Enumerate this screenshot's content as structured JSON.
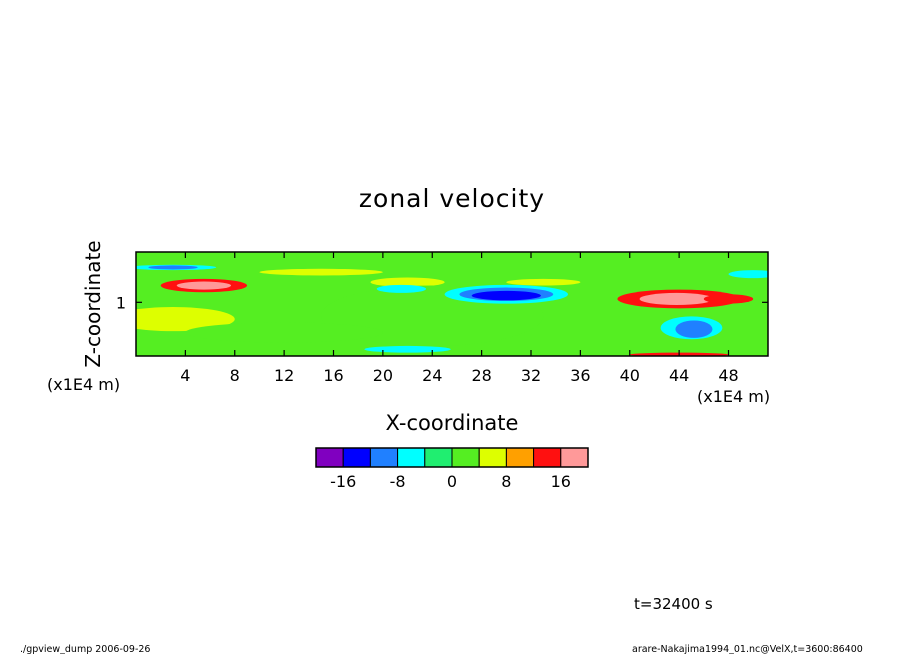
{
  "chart_data": {
    "type": "heatmap",
    "title": "zonal velocity",
    "xlabel": "X-coordinate",
    "ylabel": "Z-coordinate",
    "x_unit": "(x1E4 m)",
    "y_unit": "(x1E4 m)",
    "xlim": [
      0,
      51.2
    ],
    "ylim": [
      0.2,
      1.75
    ],
    "x_ticks": [
      "4",
      "8",
      "12",
      "16",
      "20",
      "24",
      "28",
      "32",
      "36",
      "40",
      "44",
      "48"
    ],
    "x_tick_values": [
      4,
      8,
      12,
      16,
      20,
      24,
      28,
      32,
      36,
      40,
      44,
      48
    ],
    "y_ticks": [
      "1"
    ],
    "y_tick_values": [
      1
    ],
    "background_level": 0,
    "features": [
      {
        "x": 5.5,
        "z": 1.25,
        "rx": 3.5,
        "rz": 0.1,
        "level": 12
      },
      {
        "x": 5.5,
        "z": 1.25,
        "rx": 2.2,
        "rz": 0.06,
        "level": 16
      },
      {
        "x": 3.0,
        "z": 0.75,
        "rx": 5.0,
        "rz": 0.18,
        "level": 6
      },
      {
        "x": 15.0,
        "z": 1.45,
        "rx": 5.0,
        "rz": 0.05,
        "level": 6
      },
      {
        "x": 22.0,
        "z": 1.3,
        "rx": 3.0,
        "rz": 0.07,
        "level": 6
      },
      {
        "x": 24.0,
        "z": 0.8,
        "rx": 9.0,
        "rz": 0.45,
        "level": 3
      },
      {
        "x": 12.0,
        "z": 0.55,
        "rx": 8.0,
        "rz": 0.15,
        "level": 3
      },
      {
        "x": 3.0,
        "z": 1.52,
        "rx": 3.5,
        "rz": 0.04,
        "level": -8
      },
      {
        "x": 3.0,
        "z": 1.52,
        "rx": 2.0,
        "rz": 0.03,
        "level": -12
      },
      {
        "x": 30.0,
        "z": 1.12,
        "rx": 5.0,
        "rz": 0.14,
        "level": -8
      },
      {
        "x": 30.0,
        "z": 1.12,
        "rx": 3.8,
        "rz": 0.1,
        "level": -12
      },
      {
        "x": 30.0,
        "z": 1.1,
        "rx": 2.8,
        "rz": 0.07,
        "level": -16
      },
      {
        "x": 21.5,
        "z": 1.2,
        "rx": 2.0,
        "rz": 0.06,
        "level": -8
      },
      {
        "x": 22.0,
        "z": 0.3,
        "rx": 3.5,
        "rz": 0.05,
        "level": -8
      },
      {
        "x": 33.0,
        "z": 1.3,
        "rx": 3.0,
        "rz": 0.05,
        "level": 6
      },
      {
        "x": 44.0,
        "z": 1.05,
        "rx": 5.0,
        "rz": 0.14,
        "level": 12
      },
      {
        "x": 43.8,
        "z": 1.05,
        "rx": 3.0,
        "rz": 0.09,
        "level": 16
      },
      {
        "x": 48.0,
        "z": 1.05,
        "rx": 2.0,
        "rz": 0.07,
        "level": 14
      },
      {
        "x": 45.0,
        "z": 0.62,
        "rx": 2.5,
        "rz": 0.17,
        "level": -8
      },
      {
        "x": 45.2,
        "z": 0.6,
        "rx": 1.5,
        "rz": 0.13,
        "level": -12
      },
      {
        "x": 44.0,
        "z": 0.22,
        "rx": 4.0,
        "rz": 0.03,
        "level": 12
      },
      {
        "x": 50.0,
        "z": 1.42,
        "rx": 2.0,
        "rz": 0.06,
        "level": -8
      }
    ],
    "colorbar": {
      "levels": [
        -20,
        -16,
        -12,
        -8,
        -4,
        0,
        4,
        8,
        12,
        16,
        20
      ],
      "tick_labels": [
        "-16",
        "-8",
        "0",
        "8",
        "16"
      ],
      "tick_values": [
        -16,
        -8,
        0,
        8,
        16
      ],
      "colors": [
        "#8000c0",
        "#0000ff",
        "#2080ff",
        "#00ffff",
        "#20ee70",
        "#55ee22",
        "#ddff00",
        "#ffa000",
        "#ff1010",
        "#ff9999"
      ]
    }
  },
  "footer": {
    "time_label": "t=32400 s",
    "program": "./gpview_dump  2006-09-26",
    "source": "arare-Nakajima1994_01.nc@VelX,t=3600:86400"
  }
}
